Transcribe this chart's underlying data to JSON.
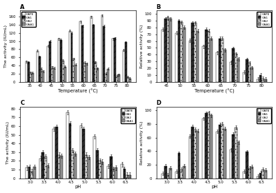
{
  "A": {
    "title": "A",
    "xlabel": "Temperature (°C)",
    "ylabel": "The activity (IU/mL)",
    "xticks": [
      35,
      40,
      45,
      50,
      55,
      60,
      65,
      70,
      75,
      80
    ],
    "ylim": [
      0,
      175
    ],
    "yticks": [
      0,
      20,
      40,
      60,
      80,
      100,
      120,
      140,
      160
    ],
    "GATE": [
      50,
      76,
      88,
      106,
      125,
      148,
      160,
      163,
      106,
      78
    ],
    "GA1": [
      48,
      62,
      100,
      103,
      120,
      138,
      140,
      137,
      107,
      97
    ],
    "GA2": [
      23,
      32,
      36,
      52,
      57,
      47,
      48,
      20,
      15,
      12
    ],
    "GAA1": [
      22,
      26,
      34,
      37,
      42,
      45,
      33,
      32,
      18,
      8
    ],
    "legend_loc": "upper left"
  },
  "B": {
    "title": "B",
    "xlabel": "Temperature (°C)",
    "ylabel": "Relative activity (%)",
    "xticks": [
      45,
      50,
      55,
      60,
      65,
      70,
      75,
      80
    ],
    "ylim": [
      0,
      105
    ],
    "yticks": [
      0,
      10,
      20,
      30,
      40,
      50,
      60,
      70,
      80,
      90,
      100
    ],
    "GATE": [
      77,
      72,
      61,
      52,
      43,
      29,
      14,
      4
    ],
    "GA1": [
      93,
      90,
      87,
      77,
      64,
      49,
      33,
      10
    ],
    "GA2": [
      95,
      88,
      87,
      75,
      64,
      41,
      28,
      5
    ],
    "GAA1": [
      93,
      80,
      75,
      64,
      47,
      34,
      21,
      4
    ],
    "legend_loc": "upper right"
  },
  "C": {
    "title": "C",
    "xlabel": "pH",
    "ylabel": "The activity (IU/mL)",
    "xticks": [
      "3.0",
      "3.5",
      "4.0",
      "4.5",
      "5.0",
      "5.5",
      "6.0",
      "6.5"
    ],
    "ylim": [
      0,
      82
    ],
    "yticks": [
      0,
      10,
      20,
      30,
      40,
      50,
      60,
      70,
      80
    ],
    "GATE": [
      12,
      23,
      57,
      76,
      61,
      48,
      14,
      16
    ],
    "GA1": [
      13,
      30,
      59,
      63,
      57,
      32,
      25,
      11
    ],
    "GA2": [
      8,
      25,
      27,
      32,
      27,
      20,
      11,
      4
    ],
    "GAA1": [
      13,
      15,
      26,
      28,
      24,
      19,
      12,
      4
    ],
    "legend_loc": "upper right"
  },
  "D": {
    "title": "D",
    "xlabel": "pH",
    "ylabel": "Relative activity (%)",
    "xticks": [
      "3.0",
      "3.5",
      "4.0",
      "4.5",
      "5.0",
      "5.5",
      "6.0",
      "6.5"
    ],
    "ylim": [
      0,
      105
    ],
    "yticks": [
      0,
      20,
      40,
      60,
      80,
      100
    ],
    "GATE": [
      7,
      10,
      62,
      88,
      69,
      42,
      10,
      3
    ],
    "GA1": [
      18,
      37,
      76,
      96,
      79,
      65,
      39,
      8
    ],
    "GA2": [
      5,
      13,
      72,
      97,
      80,
      75,
      15,
      13
    ],
    "GAA1": [
      15,
      18,
      70,
      93,
      73,
      53,
      17,
      12
    ],
    "legend_loc": "upper right"
  },
  "bar_colors": [
    "white",
    "#2a2a2a",
    "#d0d0d0",
    "#909090"
  ],
  "bar_hatches": [
    "",
    "////",
    "....",
    ""
  ],
  "bar_edgecolor": "black",
  "legend_labels": [
    "GATE",
    "GA1",
    "GA2",
    "GAA1"
  ],
  "error_vals": {
    "A": [
      3,
      3,
      2,
      2,
      3,
      3,
      3,
      3,
      3,
      2
    ],
    "B": [
      2,
      2,
      2,
      2,
      2,
      2,
      2,
      1
    ],
    "C": [
      2,
      2,
      2,
      2,
      2,
      2,
      2,
      1
    ],
    "D": [
      2,
      2,
      3,
      3,
      3,
      2,
      2,
      1
    ]
  }
}
